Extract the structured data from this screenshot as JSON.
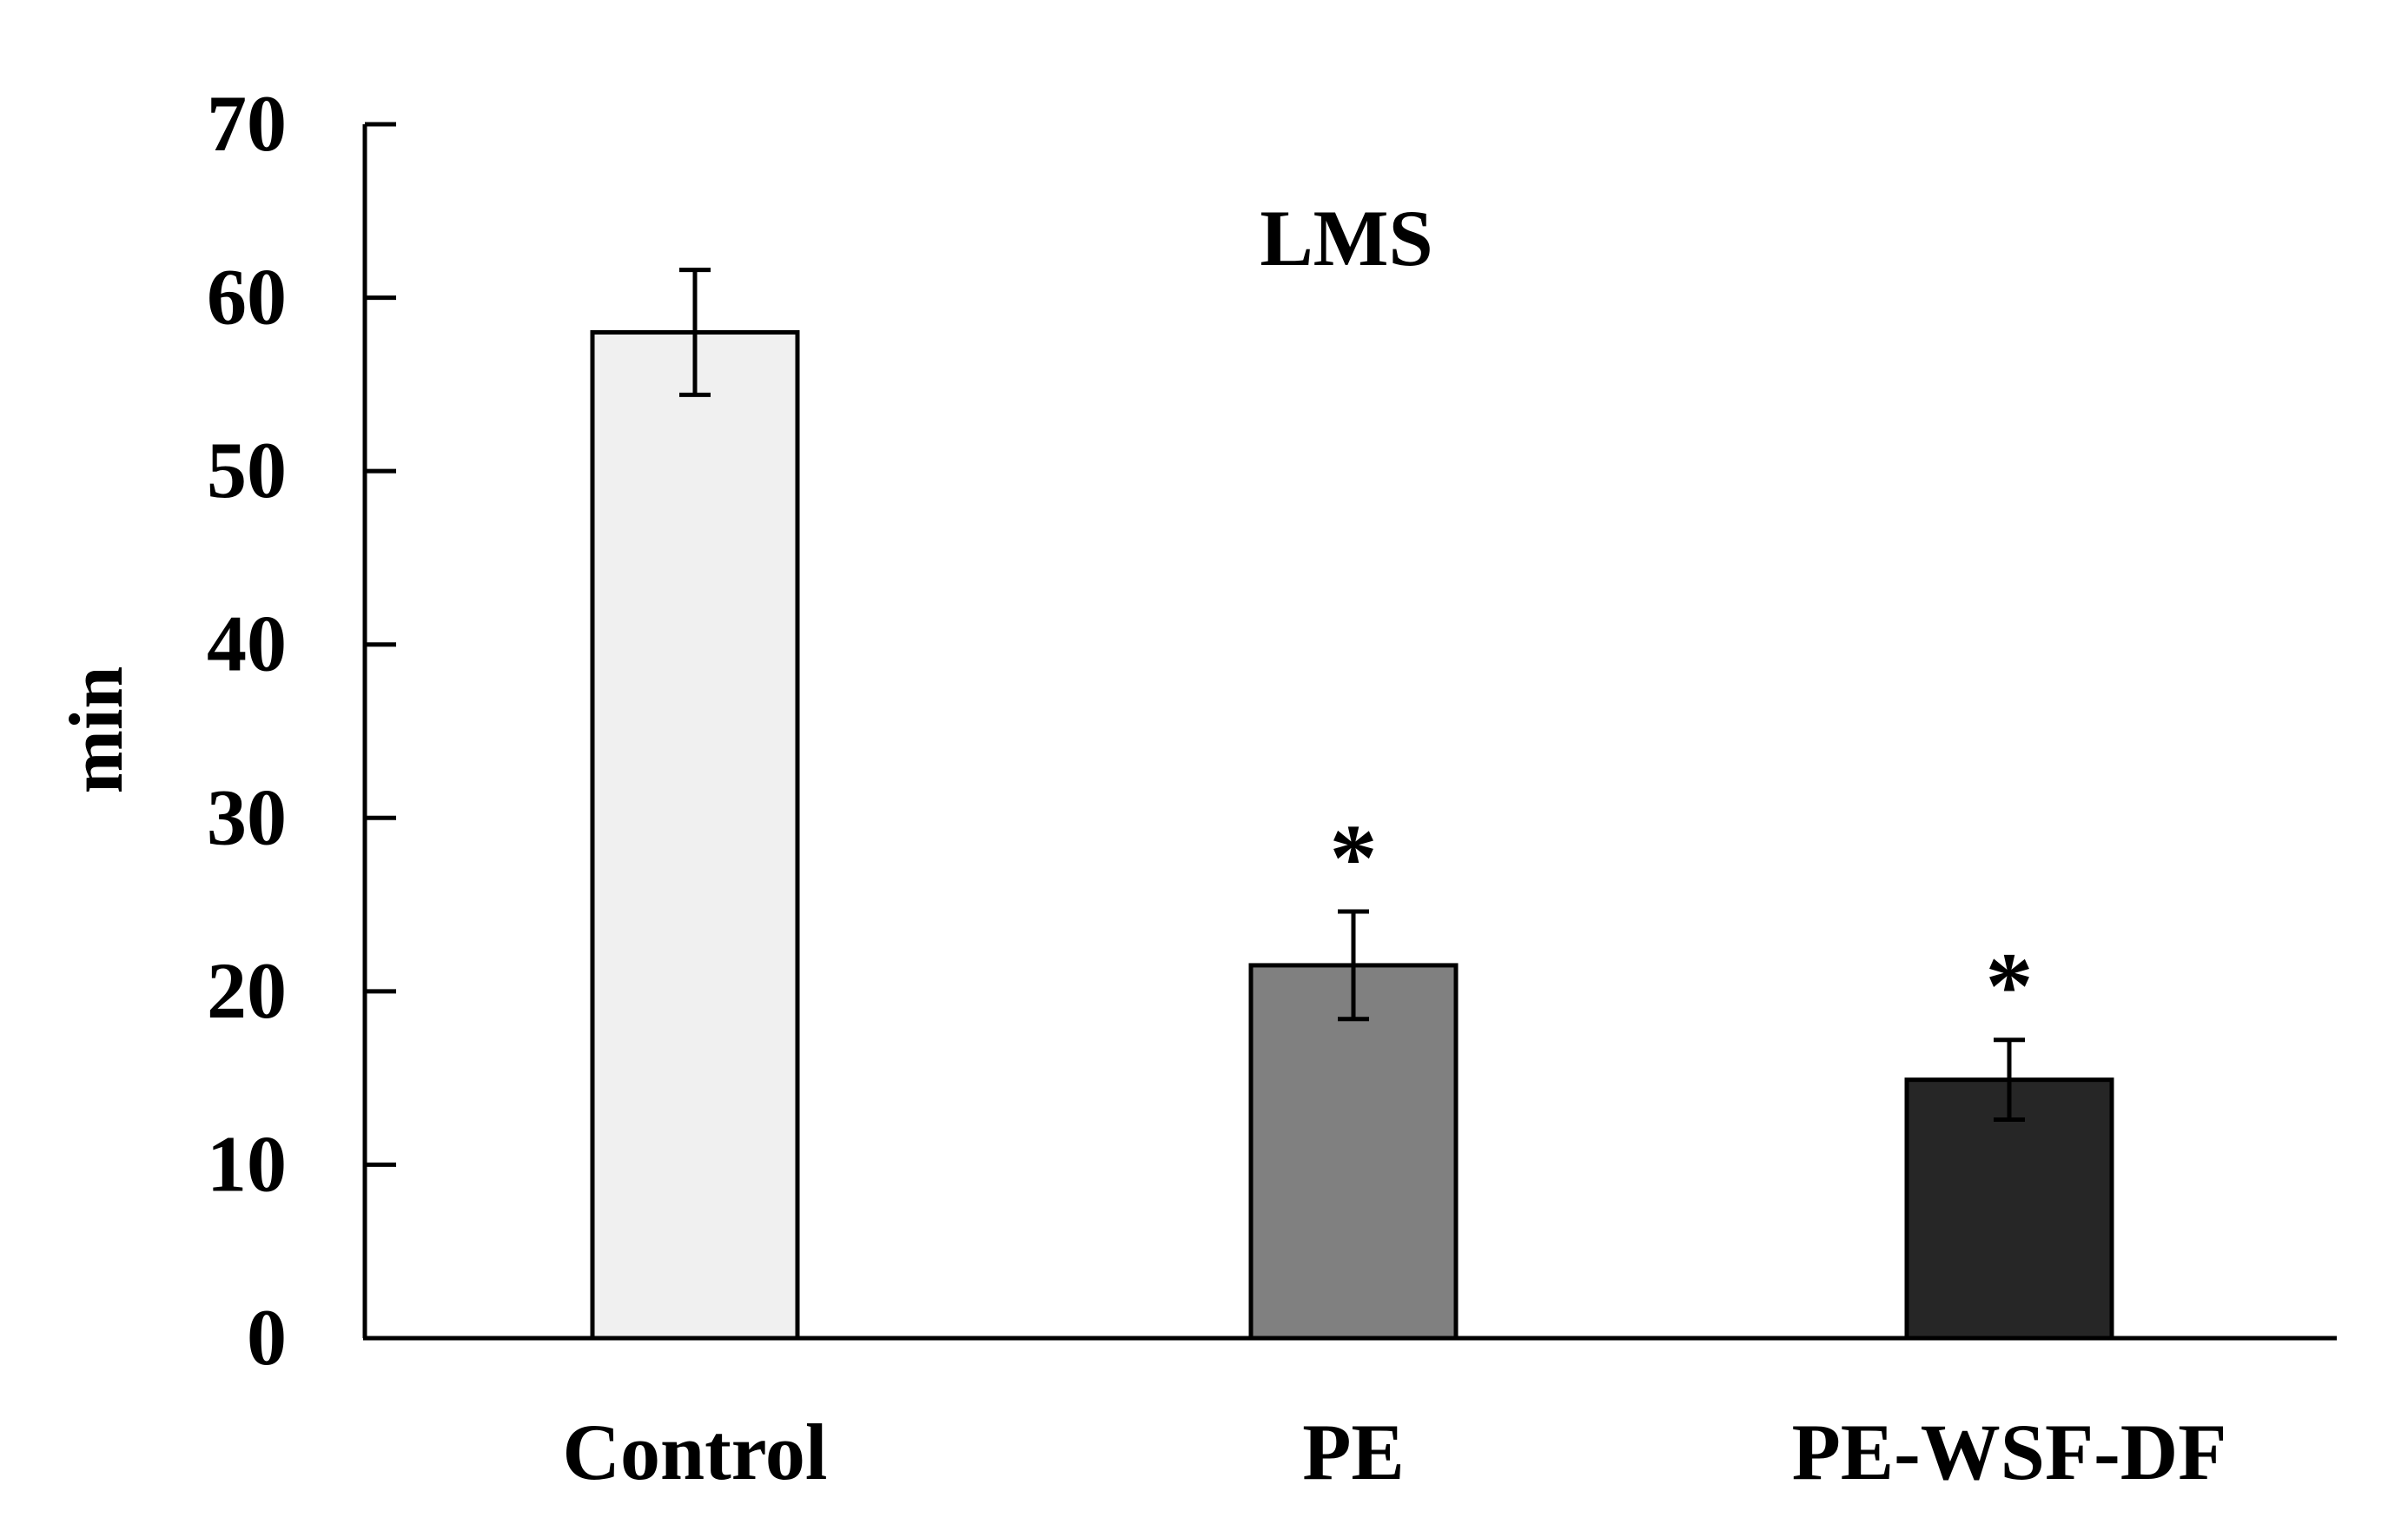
{
  "chart_data": {
    "type": "bar",
    "title": "LMS",
    "xlabel": "",
    "ylabel": "min",
    "ylim": [
      0,
      70
    ],
    "yticks": [
      "0",
      "10",
      "20",
      "30",
      "40",
      "50",
      "60",
      "70"
    ],
    "grid": false,
    "categories": [
      "Control",
      "PE",
      "PE-WSF-DF"
    ],
    "values": [
      58,
      21.5,
      14.9
    ],
    "errors": [
      3.6,
      3.1,
      2.3
    ],
    "significance": [
      "",
      "*",
      "*"
    ],
    "colors": [
      "#f0f0f0",
      "#808080",
      "#262626"
    ]
  }
}
